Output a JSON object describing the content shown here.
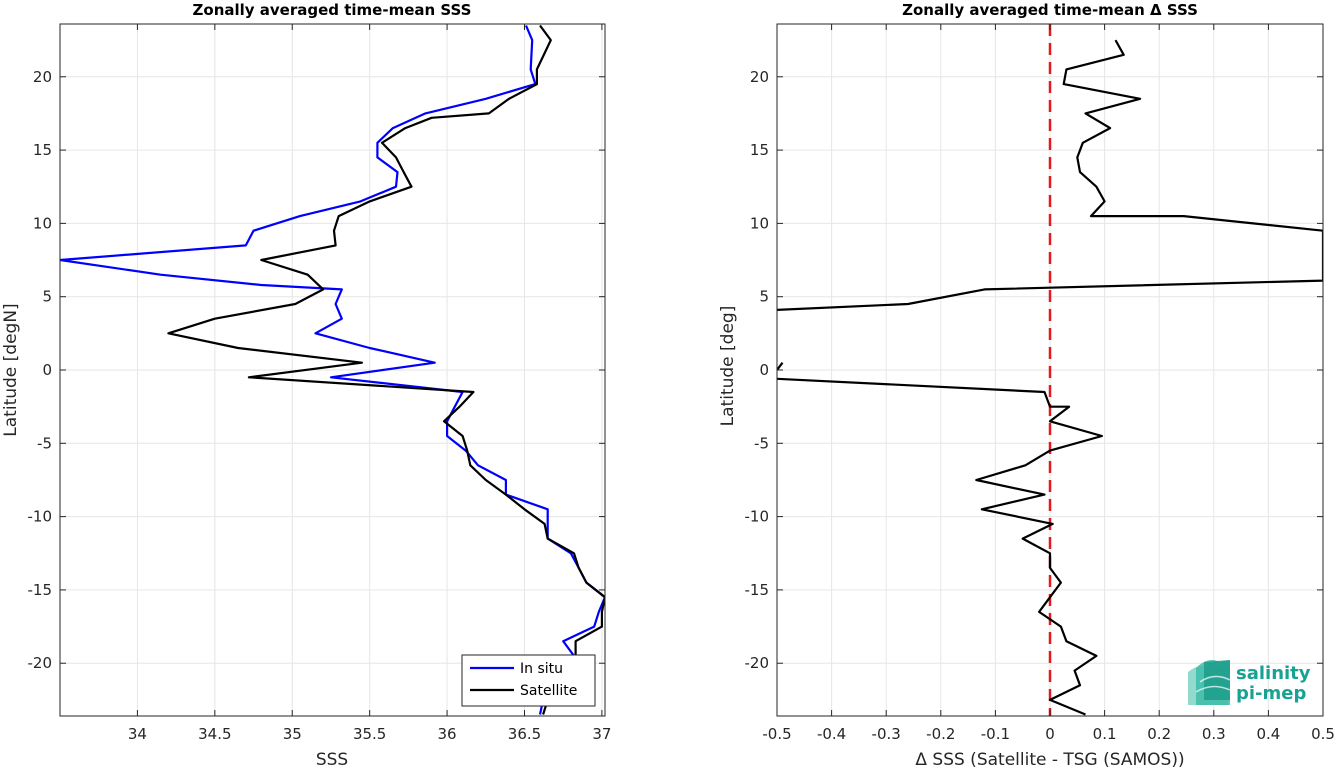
{
  "chart_data": [
    {
      "type": "line",
      "title": "Zonally averaged time-mean SSS",
      "xlabel": "SSS",
      "ylabel": "Latitude [degN]",
      "xlim": [
        33.5,
        37.02
      ],
      "ylim": [
        -23.6,
        23.6
      ],
      "xticks": [
        34,
        34.5,
        35,
        35.5,
        36,
        36.5,
        37
      ],
      "xtick_labels": [
        "34",
        "34.5",
        "35",
        "35.5",
        "36",
        "36.5",
        "37"
      ],
      "yticks": [
        -20,
        -15,
        -10,
        -5,
        0,
        5,
        10,
        15,
        20
      ],
      "ytick_labels": [
        "-20",
        "-15",
        "-10",
        "-5",
        "0",
        "5",
        "10",
        "15",
        "20"
      ],
      "grid": true,
      "legend_position": "bottom-right",
      "series": [
        {
          "name": "In situ",
          "color": "#0000ff",
          "points": [
            [
              36.51,
              23.5
            ],
            [
              36.55,
              22.5
            ],
            [
              36.54,
              20.5
            ],
            [
              36.57,
              19.5
            ],
            [
              36.25,
              18.5
            ],
            [
              35.86,
              17.5
            ],
            [
              35.65,
              16.5
            ],
            [
              35.55,
              15.5
            ],
            [
              35.55,
              14.5
            ],
            [
              35.68,
              13.5
            ],
            [
              35.67,
              12.5
            ],
            [
              35.44,
              11.5
            ],
            [
              35.05,
              10.5
            ],
            [
              34.75,
              9.5
            ],
            [
              34.7,
              8.5
            ],
            [
              33.5,
              7.5
            ],
            [
              34.15,
              6.5
            ],
            [
              34.8,
              5.8
            ],
            [
              35.32,
              5.5
            ],
            [
              35.28,
              4.5
            ],
            [
              35.32,
              3.5
            ],
            [
              35.15,
              2.5
            ],
            [
              35.5,
              1.5
            ],
            [
              35.92,
              0.5
            ],
            [
              35.25,
              -0.5
            ],
            [
              36.1,
              -1.5
            ],
            [
              36.05,
              -2.5
            ],
            [
              36.0,
              -3.5
            ],
            [
              36.0,
              -4.5
            ],
            [
              36.12,
              -5.5
            ],
            [
              36.2,
              -6.5
            ],
            [
              36.38,
              -7.5
            ],
            [
              36.38,
              -8.5
            ],
            [
              36.65,
              -9.5
            ],
            [
              36.65,
              -10.5
            ],
            [
              36.65,
              -11.5
            ],
            [
              36.8,
              -12.5
            ],
            [
              36.85,
              -13.5
            ],
            [
              36.9,
              -14.5
            ],
            [
              37.02,
              -15.5
            ],
            [
              36.98,
              -16.5
            ],
            [
              36.95,
              -17.5
            ],
            [
              36.75,
              -18.5
            ],
            [
              36.82,
              -19.5
            ],
            [
              36.83,
              -20.5
            ],
            [
              36.74,
              -21.5
            ],
            [
              36.62,
              -22.5
            ],
            [
              36.6,
              -23.5
            ]
          ]
        },
        {
          "name": "Satellite",
          "color": "#000000",
          "points": [
            [
              36.6,
              23.5
            ],
            [
              36.67,
              22.5
            ],
            [
              36.58,
              20.5
            ],
            [
              36.58,
              19.5
            ],
            [
              36.4,
              18.5
            ],
            [
              36.27,
              17.5
            ],
            [
              35.9,
              17.2
            ],
            [
              35.73,
              16.5
            ],
            [
              35.58,
              15.5
            ],
            [
              35.67,
              14.5
            ],
            [
              35.72,
              13.5
            ],
            [
              35.77,
              12.5
            ],
            [
              35.5,
              11.5
            ],
            [
              35.3,
              10.5
            ],
            [
              35.27,
              9.5
            ],
            [
              35.28,
              8.5
            ],
            [
              34.8,
              7.5
            ],
            [
              35.1,
              6.5
            ],
            [
              35.2,
              5.5
            ],
            [
              35.02,
              4.5
            ],
            [
              34.5,
              3.5
            ],
            [
              34.2,
              2.5
            ],
            [
              34.65,
              1.5
            ],
            [
              35.45,
              0.5
            ],
            [
              34.72,
              -0.5
            ],
            [
              36.17,
              -1.5
            ],
            [
              36.08,
              -2.5
            ],
            [
              35.98,
              -3.5
            ],
            [
              36.1,
              -4.5
            ],
            [
              36.13,
              -5.5
            ],
            [
              36.15,
              -6.5
            ],
            [
              36.25,
              -7.5
            ],
            [
              36.38,
              -8.5
            ],
            [
              36.5,
              -9.5
            ],
            [
              36.63,
              -10.5
            ],
            [
              36.65,
              -11.5
            ],
            [
              36.82,
              -12.5
            ],
            [
              36.85,
              -13.5
            ],
            [
              36.9,
              -14.5
            ],
            [
              37.02,
              -15.5
            ],
            [
              37.0,
              -16.5
            ],
            [
              37.0,
              -17.5
            ],
            [
              36.83,
              -18.5
            ],
            [
              36.83,
              -19.5
            ],
            [
              36.83,
              -20.5
            ],
            [
              36.72,
              -21.5
            ],
            [
              36.65,
              -22.5
            ],
            [
              36.62,
              -23.5
            ]
          ]
        }
      ]
    },
    {
      "type": "line",
      "title": "Zonally averaged time-mean Δ SSS",
      "xlabel": "Δ SSS (Satellite - TSG (SAMOS))",
      "ylabel": "Latitude [deg]",
      "xlim": [
        -0.5,
        0.5
      ],
      "ylim": [
        -23.6,
        23.6
      ],
      "xticks": [
        -0.5,
        -0.4,
        -0.3,
        -0.2,
        -0.1,
        0,
        0.1,
        0.2,
        0.3,
        0.4,
        0.5
      ],
      "xtick_labels": [
        "-0.5",
        "-0.4",
        "-0.3",
        "-0.2",
        "-0.1",
        "0",
        "0.1",
        "0.2",
        "0.3",
        "0.4",
        "0.5"
      ],
      "yticks": [
        -20,
        -15,
        -10,
        -5,
        0,
        5,
        10,
        15,
        20
      ],
      "ytick_labels": [
        "-20",
        "-15",
        "-10",
        "-5",
        "0",
        "5",
        "10",
        "15",
        "20"
      ],
      "grid": true,
      "reference_line": {
        "x": 0,
        "color": "#e41a1c",
        "style": "dashed"
      },
      "series": [
        {
          "color": "#000000",
          "points": [
            [
              0.12,
              22.5
            ],
            [
              0.135,
              21.5
            ],
            [
              0.03,
              20.5
            ],
            [
              0.025,
              19.5
            ],
            [
              0.165,
              18.5
            ],
            [
              0.065,
              17.5
            ],
            [
              0.11,
              16.5
            ],
            [
              0.06,
              15.5
            ],
            [
              0.05,
              14.5
            ],
            [
              0.055,
              13.5
            ],
            [
              0.085,
              12.5
            ],
            [
              0.1,
              11.5
            ],
            [
              0.075,
              10.5
            ],
            [
              0.245,
              10.5
            ],
            [
              0.5,
              9.5
            ],
            [
              0.5,
              6.1
            ],
            [
              -0.12,
              5.5
            ],
            [
              -0.26,
              4.5
            ],
            [
              -0.5,
              4.1
            ]
          ]
        },
        {
          "color": "#000000",
          "points": [
            [
              -0.49,
              0.5
            ],
            [
              -0.5,
              0.0
            ]
          ]
        },
        {
          "color": "#000000",
          "points": [
            [
              -0.5,
              -0.6
            ],
            [
              -0.01,
              -1.5
            ],
            [
              0.0,
              -2.5
            ],
            [
              0.035,
              -2.5
            ],
            [
              0.0,
              -3.5
            ],
            [
              0.095,
              -4.5
            ],
            [
              0.0,
              -5.5
            ],
            [
              -0.045,
              -6.5
            ],
            [
              -0.135,
              -7.5
            ],
            [
              -0.01,
              -8.5
            ],
            [
              -0.125,
              -9.5
            ],
            [
              0.005,
              -10.5
            ],
            [
              -0.05,
              -11.5
            ],
            [
              0.0,
              -12.5
            ],
            [
              0.0,
              -13.5
            ],
            [
              0.02,
              -14.5
            ],
            [
              0.0,
              -15.5
            ],
            [
              -0.02,
              -16.5
            ],
            [
              0.02,
              -17.5
            ],
            [
              0.03,
              -18.5
            ],
            [
              0.085,
              -19.5
            ],
            [
              0.045,
              -20.5
            ],
            [
              0.055,
              -21.5
            ],
            [
              0.0,
              -22.5
            ],
            [
              0.065,
              -23.5
            ]
          ]
        }
      ]
    }
  ],
  "logo": {
    "line1": "salinity",
    "line2": "pi-mep"
  }
}
